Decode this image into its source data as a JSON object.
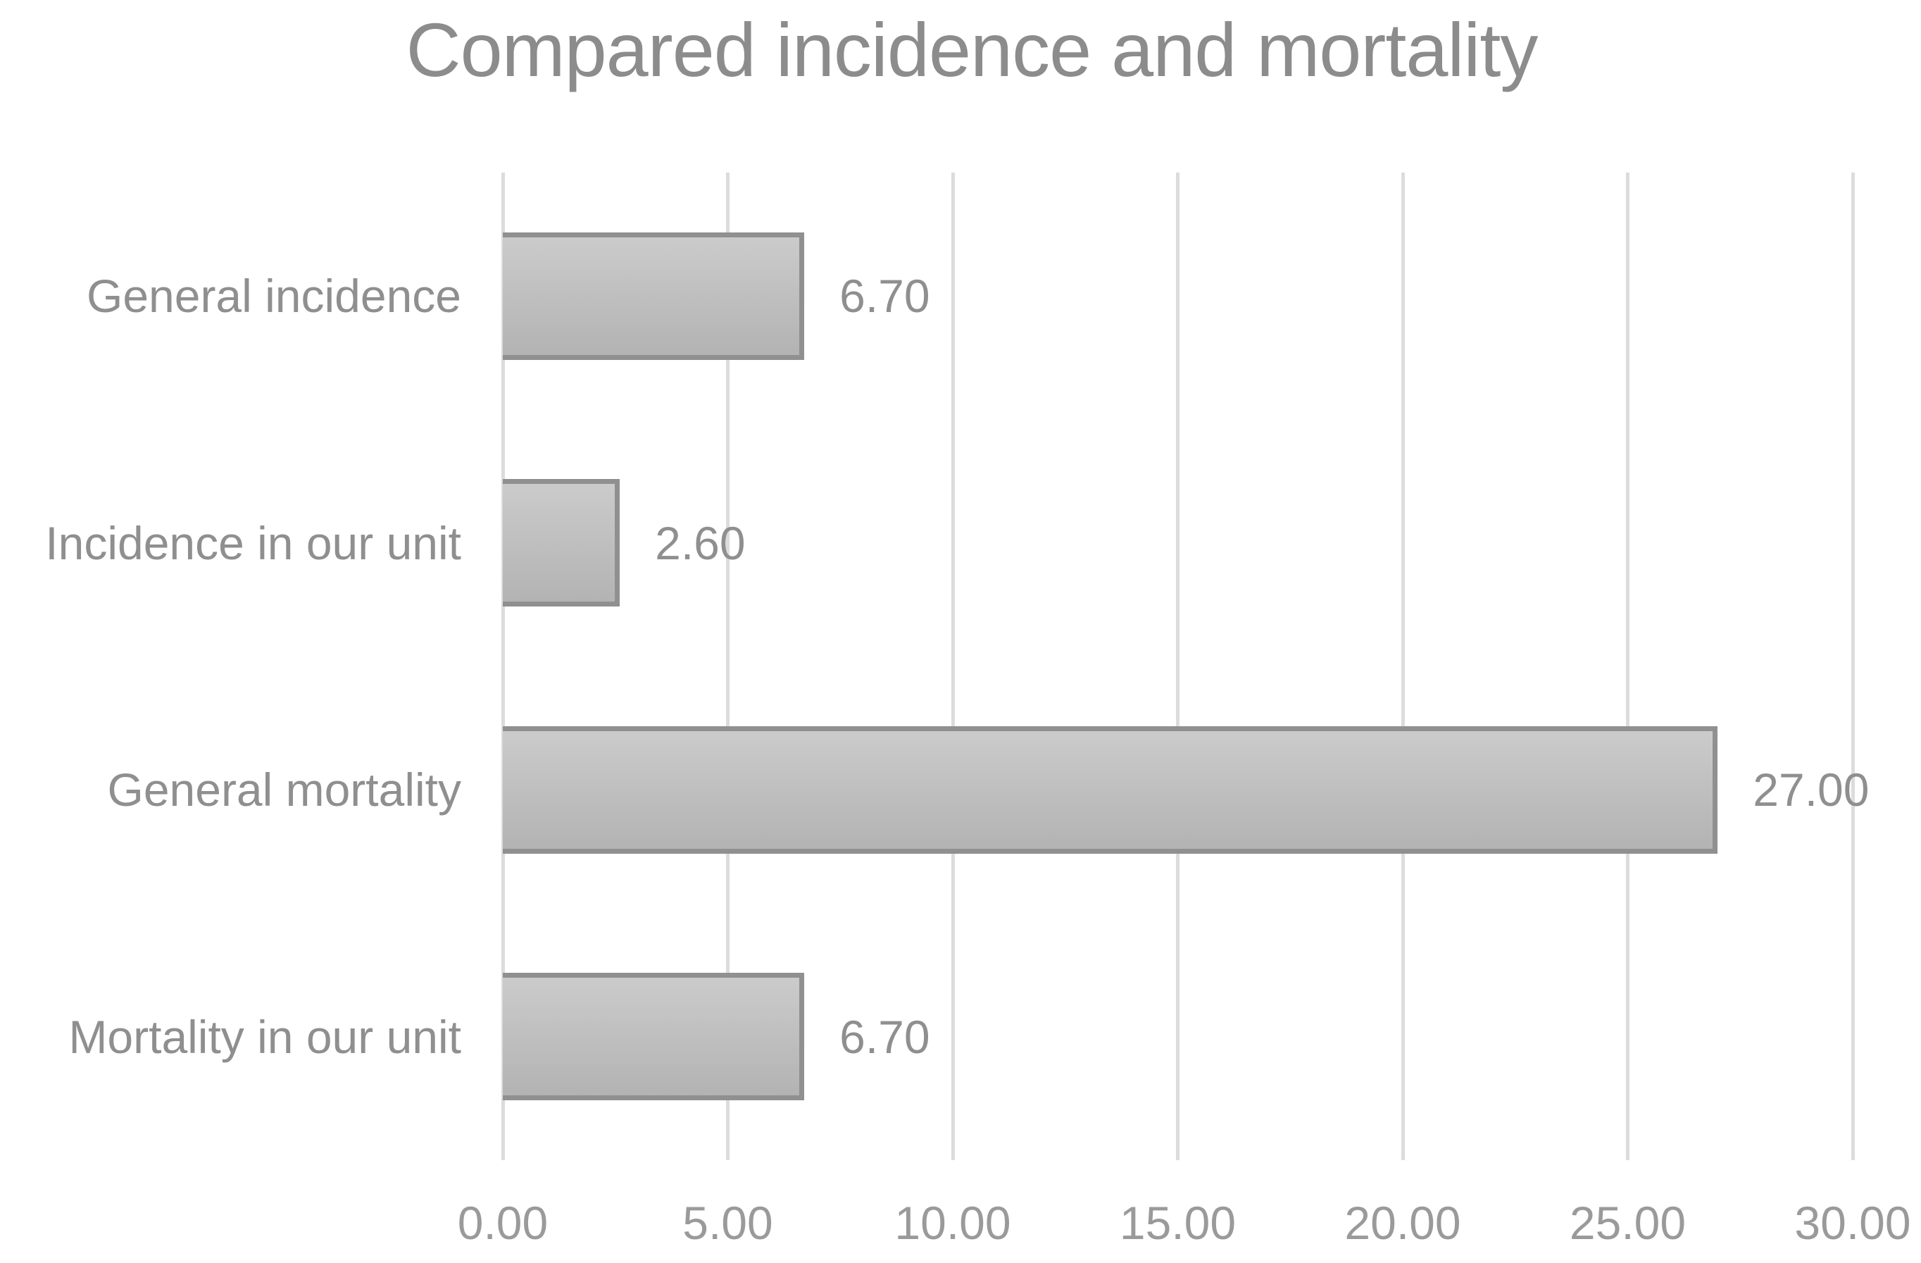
{
  "title": "Compared incidence and mortality",
  "chart_data": {
    "type": "bar",
    "orientation": "horizontal",
    "title": "Compared incidence and mortality",
    "xlabel": "",
    "ylabel": "",
    "categories": [
      "General incidence",
      "Incidence in our unit",
      "General mortality",
      "Mortality in our unit"
    ],
    "values": [
      6.7,
      2.6,
      27.0,
      6.7
    ],
    "value_labels": [
      "6.70",
      "2.60",
      "27.00",
      "6.70"
    ],
    "x_ticks": [
      0,
      5,
      10,
      15,
      20,
      25,
      30
    ],
    "x_tick_labels": [
      "0.00",
      "5.00",
      "10.00",
      "15.00",
      "20.00",
      "25.00",
      "30.00"
    ],
    "xlim": [
      0,
      30
    ],
    "grid": "vertical-gridlines",
    "legend": "none",
    "data_labels": "outside-end"
  },
  "colors": {
    "background": "#ffffff",
    "bar_fill_top": "#cbcbcb",
    "bar_fill_bottom": "#b3b3b3",
    "bar_border": "#909090",
    "gridline": "#dcdcdc",
    "title_text": "#8c8c8c",
    "label_text": "#8f8f8f",
    "tick_text": "#9a9a9a"
  }
}
